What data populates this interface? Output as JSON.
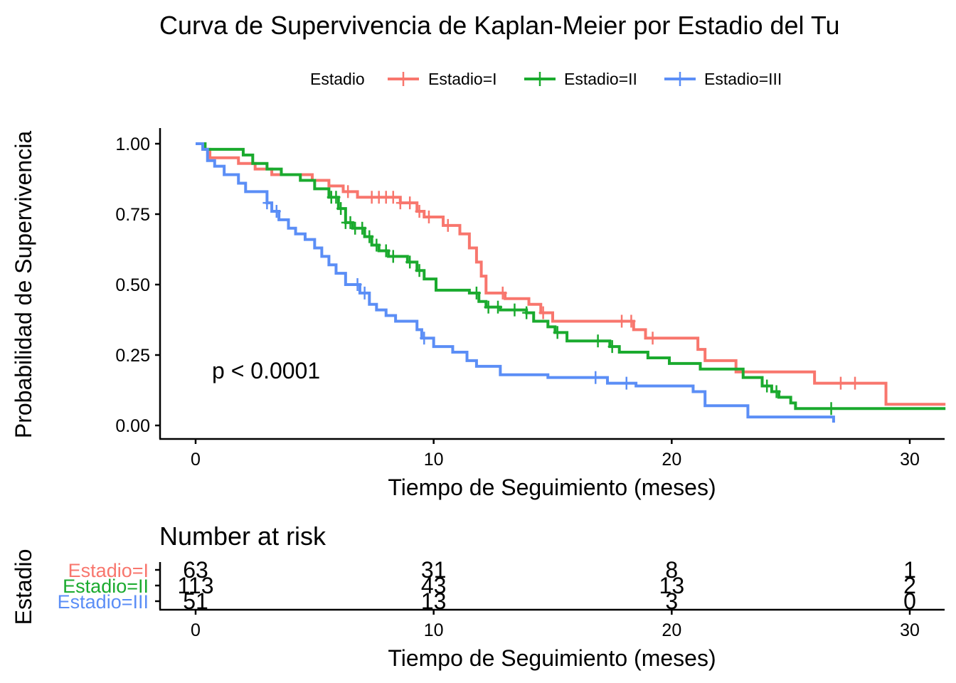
{
  "chart_data": [
    {
      "type": "line",
      "subtype": "kaplan-meier-step",
      "title": "Curva de Supervivencia de Kaplan-Meier por Estadio del Tumor",
      "title_visible": "Curva de Supervivencia de Kaplan-Meier por Estadio del Tu",
      "xlabel": "Tiempo de Seguimiento (meses)",
      "ylabel": "Probabilidad de Supervivencia",
      "xlim": [
        -1.5,
        31.5
      ],
      "ylim": [
        -0.05,
        1.05
      ],
      "x_ticks": [
        0,
        10,
        20,
        30
      ],
      "x_tick_labels": [
        "0",
        "10",
        "20",
        "30"
      ],
      "y_ticks": [
        0,
        0.25,
        0.5,
        0.75,
        1.0
      ],
      "y_tick_labels": [
        "0.00",
        "0.25",
        "0.50",
        "0.75",
        "1.00"
      ],
      "grid": false,
      "legend": {
        "title": "Estadio",
        "placement": "top",
        "entries": [
          "Estadio=I",
          "Estadio=II",
          "Estadio=III"
        ]
      },
      "annotation": "p < 0.0001",
      "series": [
        {
          "name": "Estadio=I",
          "color": "#F8766D",
          "steps": [
            [
              0,
              1.0
            ],
            [
              0.3,
              0.98
            ],
            [
              0.6,
              0.95
            ],
            [
              1.8,
              0.93
            ],
            [
              2.5,
              0.91
            ],
            [
              3.2,
              0.89
            ],
            [
              4.9,
              0.87
            ],
            [
              5.6,
              0.85
            ],
            [
              6.2,
              0.83
            ],
            [
              6.8,
              0.81
            ],
            [
              8.6,
              0.79
            ],
            [
              9.3,
              0.76
            ],
            [
              9.6,
              0.74
            ],
            [
              10.4,
              0.71
            ],
            [
              11.1,
              0.68
            ],
            [
              11.5,
              0.63
            ],
            [
              11.8,
              0.58
            ],
            [
              12.0,
              0.53
            ],
            [
              12.2,
              0.47
            ],
            [
              13.0,
              0.45
            ],
            [
              14.0,
              0.43
            ],
            [
              14.5,
              0.4
            ],
            [
              15.0,
              0.37
            ],
            [
              18.4,
              0.34
            ],
            [
              18.9,
              0.31
            ],
            [
              21.1,
              0.27
            ],
            [
              21.4,
              0.23
            ],
            [
              22.7,
              0.19
            ],
            [
              26.0,
              0.15
            ],
            [
              29.0,
              0.075
            ],
            [
              31.5,
              0.075
            ]
          ],
          "censor_times": [
            6.4,
            7.4,
            7.7,
            8.0,
            8.3,
            8.6,
            9.0,
            9.4,
            9.8,
            10.6,
            12.9,
            14.6,
            17.9,
            18.3,
            19.2,
            27.1,
            27.7
          ]
        },
        {
          "name": "Estadio=II",
          "color": "#1AAA2E",
          "steps": [
            [
              0,
              1.0
            ],
            [
              0.4,
              0.98
            ],
            [
              2.0,
              0.96
            ],
            [
              2.4,
              0.93
            ],
            [
              3.0,
              0.91
            ],
            [
              3.6,
              0.89
            ],
            [
              4.4,
              0.87
            ],
            [
              5.0,
              0.84
            ],
            [
              5.6,
              0.81
            ],
            [
              6.0,
              0.77
            ],
            [
              6.3,
              0.72
            ],
            [
              6.6,
              0.7
            ],
            [
              7.1,
              0.67
            ],
            [
              7.4,
              0.64
            ],
            [
              7.7,
              0.62
            ],
            [
              8.1,
              0.6
            ],
            [
              8.9,
              0.58
            ],
            [
              9.3,
              0.55
            ],
            [
              9.6,
              0.52
            ],
            [
              10.1,
              0.48
            ],
            [
              11.5,
              0.47
            ],
            [
              11.9,
              0.44
            ],
            [
              12.2,
              0.42
            ],
            [
              12.8,
              0.41
            ],
            [
              13.9,
              0.4
            ],
            [
              14.2,
              0.37
            ],
            [
              14.8,
              0.35
            ],
            [
              15.1,
              0.33
            ],
            [
              15.6,
              0.3
            ],
            [
              17.4,
              0.28
            ],
            [
              17.8,
              0.26
            ],
            [
              19.0,
              0.24
            ],
            [
              19.9,
              0.22
            ],
            [
              21.2,
              0.2
            ],
            [
              23.0,
              0.17
            ],
            [
              23.8,
              0.14
            ],
            [
              24.2,
              0.12
            ],
            [
              24.5,
              0.1
            ],
            [
              25.0,
              0.08
            ],
            [
              25.2,
              0.06
            ],
            [
              31.5,
              0.06
            ]
          ],
          "censor_times": [
            5.7,
            5.9,
            6.1,
            6.3,
            6.5,
            6.7,
            7.0,
            7.3,
            7.6,
            8.0,
            8.3,
            9.0,
            9.4,
            11.8,
            12.3,
            12.7,
            13.4,
            13.9,
            15.2,
            16.9,
            17.5,
            24.0,
            24.4,
            26.7
          ]
        },
        {
          "name": "Estadio=III",
          "color": "#5B8EF6",
          "steps": [
            [
              0,
              1.0
            ],
            [
              0.3,
              0.98
            ],
            [
              0.5,
              0.94
            ],
            [
              0.8,
              0.92
            ],
            [
              1.2,
              0.89
            ],
            [
              1.8,
              0.86
            ],
            [
              2.1,
              0.83
            ],
            [
              3.0,
              0.79
            ],
            [
              3.2,
              0.76
            ],
            [
              3.5,
              0.73
            ],
            [
              3.9,
              0.7
            ],
            [
              4.2,
              0.68
            ],
            [
              4.6,
              0.66
            ],
            [
              5.0,
              0.63
            ],
            [
              5.3,
              0.6
            ],
            [
              5.6,
              0.57
            ],
            [
              5.9,
              0.54
            ],
            [
              6.3,
              0.5
            ],
            [
              6.9,
              0.47
            ],
            [
              7.3,
              0.43
            ],
            [
              7.6,
              0.41
            ],
            [
              8.0,
              0.39
            ],
            [
              8.4,
              0.37
            ],
            [
              9.3,
              0.34
            ],
            [
              9.5,
              0.31
            ],
            [
              10.0,
              0.28
            ],
            [
              10.8,
              0.26
            ],
            [
              11.4,
              0.23
            ],
            [
              11.8,
              0.21
            ],
            [
              12.8,
              0.18
            ],
            [
              14.8,
              0.17
            ],
            [
              17.3,
              0.15
            ],
            [
              18.5,
              0.14
            ],
            [
              20.9,
              0.12
            ],
            [
              21.4,
              0.07
            ],
            [
              23.2,
              0.03
            ],
            [
              26.8,
              0.03
            ],
            [
              26.8,
              0.01
            ]
          ],
          "censor_times": [
            3.0,
            3.4,
            6.8,
            7.1,
            9.6,
            16.8,
            18.1
          ]
        }
      ]
    },
    {
      "type": "table",
      "title": "Number at risk",
      "xlabel": "Tiempo de Seguimiento (meses)",
      "ylabel": "Estadio",
      "x_ticks": [
        0,
        10,
        20,
        30
      ],
      "x_tick_labels": [
        "0",
        "10",
        "20",
        "30"
      ],
      "rows": [
        {
          "name": "Estadio=I",
          "color": "#F8766D",
          "values": [
            63,
            31,
            8,
            1
          ]
        },
        {
          "name": "Estadio=II",
          "color": "#1AAA2E",
          "values": [
            113,
            43,
            13,
            2
          ]
        },
        {
          "name": "Estadio=III",
          "color": "#5B8EF6",
          "values": [
            51,
            13,
            3,
            0
          ]
        }
      ]
    }
  ]
}
